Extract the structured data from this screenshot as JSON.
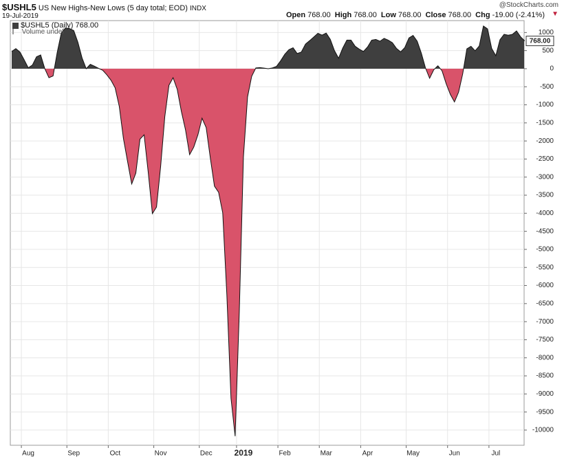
{
  "chart_data": {
    "type": "area",
    "title": "$USHL5",
    "subtitle": "US New Highs-New Lows (5 day total; EOD)",
    "exchange": "INDX",
    "date": "19-Jul-2019",
    "source": "@StockCharts.com",
    "quote": [
      {
        "label": "Open",
        "value": "768.00"
      },
      {
        "label": "High",
        "value": "768.00"
      },
      {
        "label": "Low",
        "value": "768.00"
      },
      {
        "label": "Close",
        "value": "768.00"
      },
      {
        "label": "Chg",
        "value": "-19.00 (-2.41%)"
      }
    ],
    "legend_label": "$USHL5 (Daily) 768.00",
    "volume_label": "Volume undef",
    "last_label": "768.00",
    "positive_color": "#3f3f3f",
    "negative_color": "#d9536a",
    "grid": true,
    "ylim": [
      -10420,
      1330
    ],
    "yticks": [
      1000,
      500,
      0,
      -500,
      -1000,
      -1500,
      -2000,
      -2500,
      -3000,
      -3500,
      -4000,
      -4500,
      -5000,
      -5500,
      -6000,
      -6500,
      -7000,
      -7500,
      -8000,
      -8500,
      -9000,
      -9500,
      -10000
    ],
    "categories": [
      null,
      null,
      null,
      null,
      "Aug",
      null,
      null,
      null,
      null,
      null,
      null,
      null,
      null,
      null,
      null,
      "Sep",
      null,
      null,
      null,
      null,
      null,
      null,
      null,
      null,
      null,
      "Oct",
      null,
      null,
      null,
      null,
      null,
      null,
      null,
      null,
      null,
      null,
      "Nov",
      null,
      null,
      null,
      null,
      null,
      null,
      null,
      null,
      null,
      null,
      "Dec",
      null,
      null,
      null,
      null,
      null,
      null,
      null,
      null,
      "2019",
      null,
      null,
      null,
      null,
      null,
      null,
      null,
      null,
      null,
      "Feb",
      null,
      null,
      null,
      null,
      null,
      null,
      null,
      null,
      null,
      "Mar",
      null,
      null,
      null,
      null,
      null,
      null,
      null,
      null,
      null,
      "Apr",
      null,
      null,
      null,
      null,
      null,
      null,
      null,
      null,
      null,
      null,
      "May",
      null,
      null,
      null,
      null,
      null,
      null,
      null,
      null,
      null,
      "Jun",
      null,
      null,
      null,
      null,
      null,
      null,
      null,
      null,
      null,
      "Jul",
      null,
      null,
      null,
      null,
      null,
      null,
      null
    ],
    "values": [
      475,
      555,
      460,
      250,
      25,
      100,
      330,
      380,
      0,
      -250,
      -200,
      450,
      990,
      1125,
      1110,
      1055,
      730,
      300,
      0,
      120,
      70,
      10,
      -45,
      -170,
      -320,
      -530,
      -1045,
      -1930,
      -2565,
      -3190,
      -2890,
      -1950,
      -1830,
      -2870,
      -4010,
      -3830,
      -2700,
      -1330,
      -460,
      -250,
      -570,
      -1180,
      -1690,
      -2380,
      -2170,
      -1830,
      -1370,
      -1630,
      -2470,
      -3250,
      -3420,
      -3990,
      -6270,
      -9120,
      -10170,
      -6750,
      -2450,
      -780,
      -210,
      20,
      30,
      15,
      0,
      20,
      65,
      220,
      400,
      525,
      580,
      420,
      460,
      680,
      775,
      875,
      980,
      930,
      985,
      810,
      500,
      290,
      570,
      790,
      790,
      620,
      540,
      475,
      600,
      790,
      810,
      760,
      840,
      790,
      720,
      560,
      465,
      585,
      850,
      920,
      760,
      430,
      20,
      -265,
      -30,
      80,
      -60,
      -415,
      -710,
      -920,
      -650,
      -140,
      550,
      620,
      495,
      630,
      1180,
      1100,
      560,
      360,
      800,
      950,
      925,
      950,
      1045,
      880,
      768
    ]
  }
}
